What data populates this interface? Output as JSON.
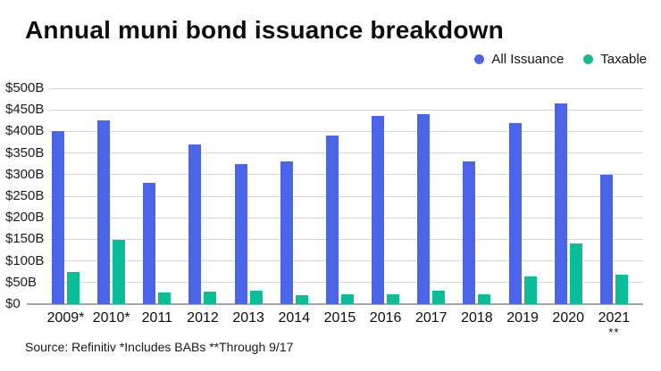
{
  "chart_data": {
    "type": "bar",
    "title": "Annual muni bond issuance breakdown",
    "categories": [
      "2009*",
      "2010*",
      "2011",
      "2012",
      "2013",
      "2014",
      "2015",
      "2016",
      "2017",
      "2018",
      "2019",
      "2020",
      "2021"
    ],
    "last_category_footnote": "**",
    "series": [
      {
        "name": "All Issuance",
        "color": "#4C64E8",
        "values": [
          400,
          425,
          280,
          370,
          325,
          330,
          390,
          435,
          440,
          330,
          420,
          465,
          300
        ]
      },
      {
        "name": "Taxable",
        "color": "#0CBE97",
        "values": [
          75,
          148,
          26,
          28,
          32,
          20,
          23,
          23,
          32,
          23,
          65,
          140,
          68
        ]
      }
    ],
    "unit": "B",
    "currency": "$",
    "ylim": [
      0,
      500
    ],
    "ytick_step": 50,
    "ytick_labels": [
      "$500B",
      "$450B",
      "$400B",
      "$350B",
      "$300B",
      "$250B",
      "$200B",
      "$150B",
      "$100B",
      "$50B",
      "$0"
    ],
    "grid": true,
    "legend_position": "top-right",
    "source": "Source: Refinitiv *Includes BABs **Through 9/17"
  }
}
